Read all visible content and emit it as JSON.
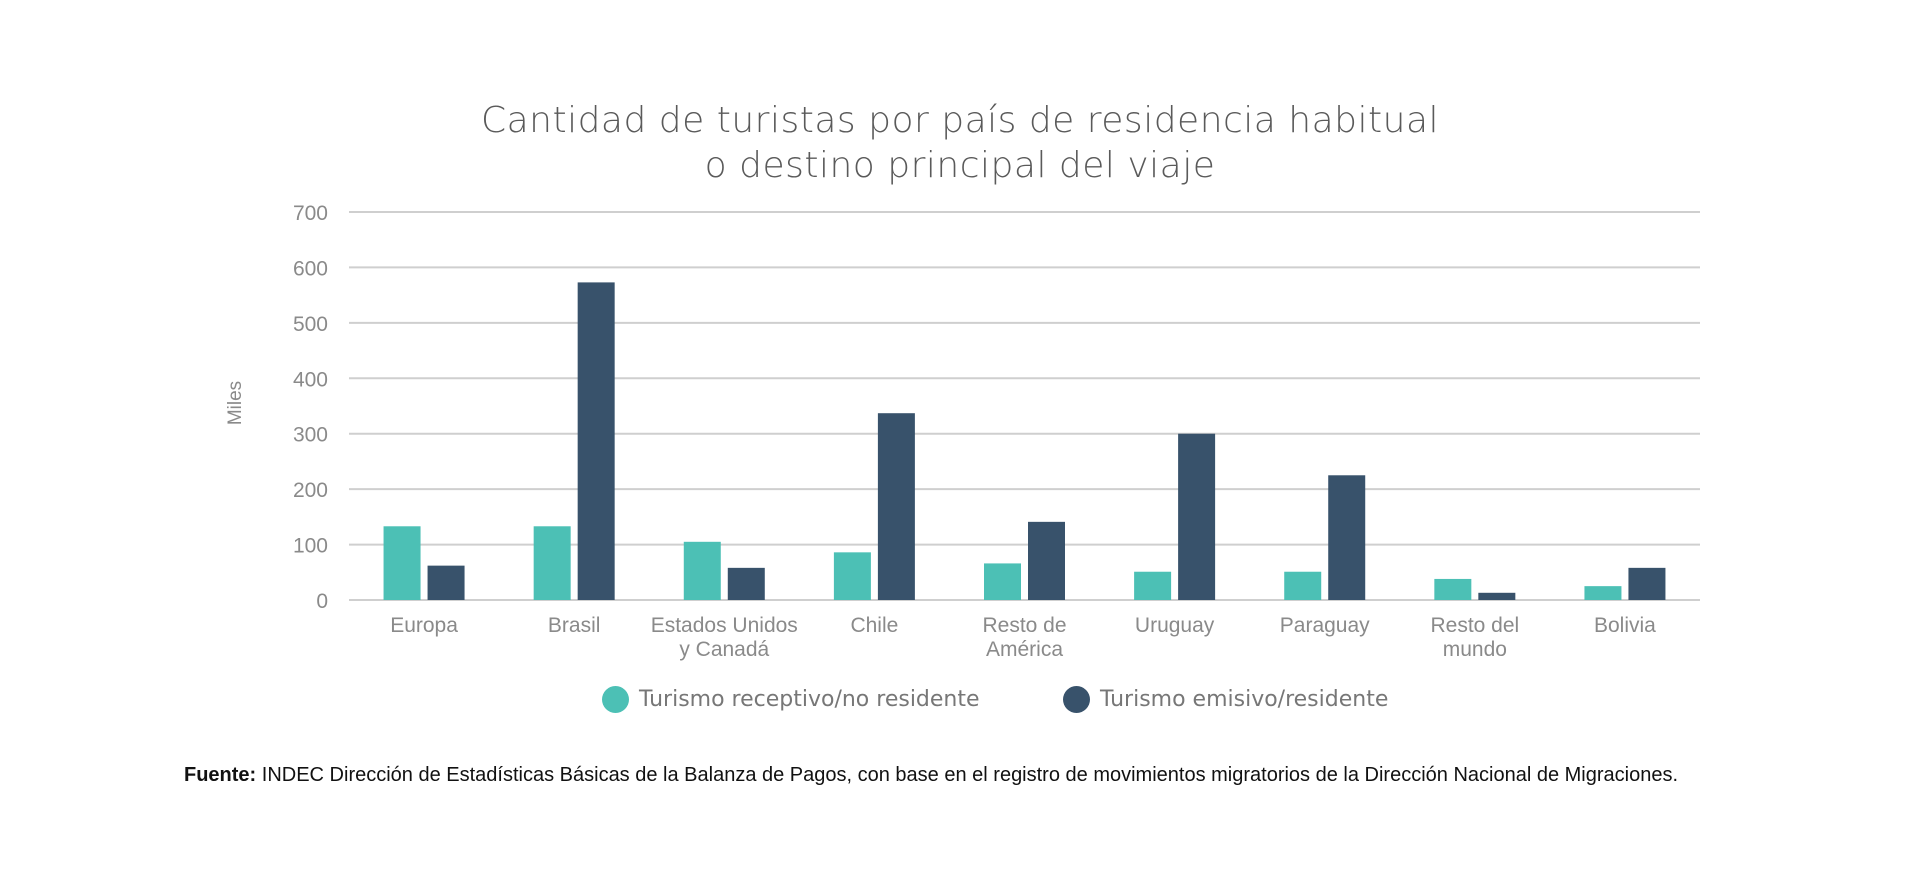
{
  "chart_data": {
    "type": "bar",
    "title": "Cantidad de turistas por país de residencia habitual o destino principal del viaje",
    "title_lines": [
      "Cantidad de turistas por país de residencia habitual",
      "o destino principal del viaje"
    ],
    "xlabel": "",
    "ylabel": "Miles",
    "ylim": [
      0,
      700
    ],
    "yticks": [
      0,
      100,
      200,
      300,
      400,
      500,
      600,
      700
    ],
    "grid": true,
    "legend_position": "bottom",
    "categories": [
      [
        "Europa"
      ],
      [
        "Brasil"
      ],
      [
        "Estados Unidos",
        "y Canadá"
      ],
      [
        "Chile"
      ],
      [
        "Resto de",
        "América"
      ],
      [
        "Uruguay"
      ],
      [
        "Paraguay"
      ],
      [
        "Resto del",
        "mundo"
      ],
      [
        "Bolivia"
      ]
    ],
    "series": [
      {
        "name": "Turismo receptivo/no residente",
        "color": "#4cc0b5",
        "values": [
          133,
          133,
          105,
          86,
          66,
          51,
          51,
          38,
          25
        ]
      },
      {
        "name": "Turismo emisivo/residente",
        "color": "#38526b",
        "values": [
          62,
          573,
          58,
          337,
          141,
          300,
          225,
          13,
          58
        ]
      }
    ]
  },
  "footnote": {
    "label": "Fuente:",
    "text": " INDEC Dirección de Estadísticas Básicas de la Balanza de Pagos, con base en el registro de movimientos migratorios de la Dirección Nacional de Migraciones."
  }
}
